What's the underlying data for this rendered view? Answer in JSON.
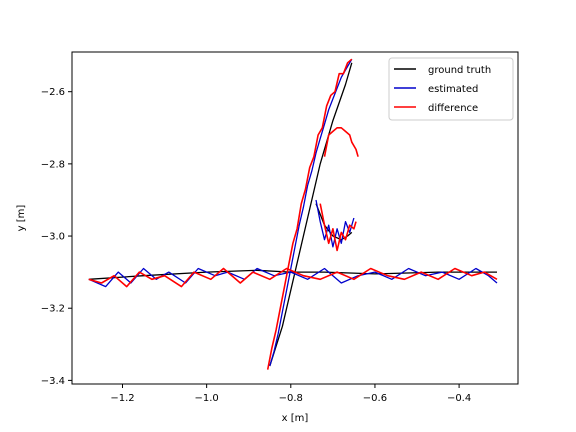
{
  "chart_data": {
    "type": "line",
    "title": "",
    "xlabel": "x [m]",
    "ylabel": "y [m]",
    "xlim": [
      -1.32,
      -0.26
    ],
    "ylim": [
      -3.41,
      -2.49
    ],
    "xticks": [
      -1.2,
      -1.0,
      -0.8,
      -0.6,
      -0.4
    ],
    "xtick_labels": [
      "−1.2",
      "−1.0",
      "−0.8",
      "−0.6",
      "−0.4"
    ],
    "yticks": [
      -2.6,
      -2.8,
      -3.0,
      -3.2,
      -3.4
    ],
    "ytick_labels": [
      "−2.6",
      "−2.8",
      "−3.0",
      "−3.2",
      "−3.4"
    ],
    "grid": false,
    "legend": {
      "position": "top-right"
    },
    "series": [
      {
        "name": "ground truth",
        "color": "#000000",
        "x": [
          -1.28,
          -1.15,
          -1.0,
          -0.88,
          -0.8,
          -0.72,
          -0.6,
          -0.45,
          -0.31,
          null,
          -0.85,
          -0.82,
          -0.79,
          -0.76,
          -0.73,
          -0.7,
          -0.67,
          -0.655,
          null,
          -0.74,
          -0.72,
          -0.7,
          -0.68,
          -0.665,
          -0.655
        ],
        "y": [
          -3.12,
          -3.11,
          -3.1,
          -3.095,
          -3.1,
          -3.1,
          -3.105,
          -3.1,
          -3.1,
          null,
          -3.36,
          -3.25,
          -3.1,
          -2.95,
          -2.8,
          -2.68,
          -2.58,
          -2.52,
          null,
          -2.91,
          -2.97,
          -3.0,
          -3.01,
          -3.0,
          -2.99
        ]
      },
      {
        "name": "estimated",
        "color": "#0000cc",
        "x": [
          -1.28,
          -1.24,
          -1.21,
          -1.18,
          -1.15,
          -1.12,
          -1.09,
          -1.05,
          -1.02,
          -0.98,
          -0.95,
          -0.91,
          -0.88,
          -0.84,
          -0.8,
          -0.76,
          -0.72,
          -0.68,
          -0.64,
          -0.6,
          -0.56,
          -0.52,
          -0.48,
          -0.44,
          -0.4,
          -0.36,
          -0.33,
          -0.31,
          null,
          -0.85,
          -0.84,
          -0.83,
          -0.82,
          -0.81,
          -0.8,
          -0.79,
          -0.78,
          -0.77,
          -0.76,
          -0.75,
          -0.74,
          -0.73,
          -0.72,
          -0.71,
          -0.7,
          -0.69,
          -0.68,
          -0.67,
          -0.66,
          -0.655,
          null,
          -0.74,
          -0.73,
          -0.72,
          -0.71,
          -0.7,
          -0.69,
          -0.68,
          -0.67,
          -0.66,
          -0.65
        ],
        "y": [
          -3.12,
          -3.14,
          -3.1,
          -3.13,
          -3.09,
          -3.12,
          -3.1,
          -3.13,
          -3.09,
          -3.11,
          -3.1,
          -3.12,
          -3.09,
          -3.11,
          -3.1,
          -3.12,
          -3.09,
          -3.13,
          -3.11,
          -3.1,
          -3.12,
          -3.09,
          -3.11,
          -3.1,
          -3.12,
          -3.09,
          -3.11,
          -3.13,
          null,
          -3.36,
          -3.32,
          -3.27,
          -3.21,
          -3.15,
          -3.09,
          -3.03,
          -2.97,
          -2.92,
          -2.86,
          -2.82,
          -2.77,
          -2.73,
          -2.69,
          -2.65,
          -2.62,
          -2.59,
          -2.56,
          -2.54,
          -2.52,
          -2.51,
          null,
          -2.9,
          -2.96,
          -3.01,
          -2.97,
          -3.03,
          -2.98,
          -3.02,
          -2.96,
          -2.99,
          -2.95
        ]
      },
      {
        "name": "difference",
        "color": "#ff0000",
        "x": [
          -1.28,
          -1.25,
          -1.22,
          -1.19,
          -1.16,
          -1.13,
          -1.1,
          -1.06,
          -1.03,
          -0.99,
          -0.96,
          -0.92,
          -0.89,
          -0.85,
          -0.81,
          -0.77,
          -0.73,
          -0.69,
          -0.65,
          -0.61,
          -0.57,
          -0.53,
          -0.49,
          -0.45,
          -0.41,
          -0.37,
          -0.34,
          -0.31,
          null,
          -0.855,
          -0.845,
          -0.835,
          -0.825,
          -0.815,
          -0.805,
          -0.795,
          -0.785,
          -0.775,
          -0.765,
          -0.755,
          -0.745,
          -0.735,
          -0.725,
          -0.715,
          -0.705,
          -0.695,
          -0.685,
          -0.675,
          -0.665,
          -0.655,
          null,
          -0.73,
          -0.72,
          -0.71,
          -0.7,
          -0.69,
          -0.68,
          -0.67,
          -0.66,
          -0.65,
          -0.645,
          null,
          -0.72,
          -0.71,
          -0.7,
          -0.69,
          -0.68,
          -0.67,
          -0.66,
          -0.655,
          -0.645,
          -0.64
        ],
        "y": [
          -3.12,
          -3.13,
          -3.11,
          -3.14,
          -3.1,
          -3.12,
          -3.11,
          -3.14,
          -3.1,
          -3.12,
          -3.09,
          -3.13,
          -3.1,
          -3.12,
          -3.09,
          -3.11,
          -3.12,
          -3.1,
          -3.12,
          -3.09,
          -3.11,
          -3.12,
          -3.1,
          -3.12,
          -3.09,
          -3.11,
          -3.1,
          -3.12,
          null,
          -3.37,
          -3.31,
          -3.26,
          -3.2,
          -3.14,
          -3.08,
          -3.02,
          -2.98,
          -2.91,
          -2.87,
          -2.81,
          -2.78,
          -2.72,
          -2.7,
          -2.64,
          -2.61,
          -2.6,
          -2.55,
          -2.55,
          -2.52,
          -2.51,
          null,
          -2.91,
          -2.97,
          -3.02,
          -2.98,
          -3.04,
          -2.99,
          -3.01,
          -2.97,
          -2.98,
          -2.96,
          null,
          -2.78,
          -2.72,
          -2.71,
          -2.7,
          -2.7,
          -2.71,
          -2.72,
          -2.74,
          -2.76,
          -2.78
        ]
      }
    ]
  }
}
